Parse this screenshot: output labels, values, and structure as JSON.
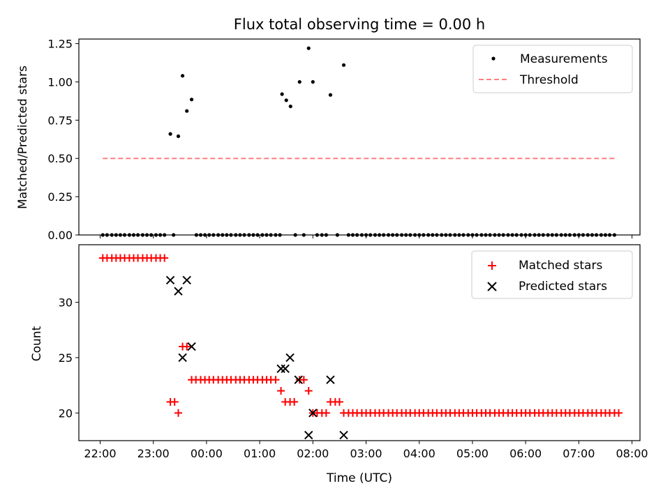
{
  "chart_data": [
    {
      "type": "scatter",
      "title": "Flux total observing time = 0.00 h",
      "xlabel": "",
      "ylabel": "Matched/Predicted stars",
      "xlim": [
        21.6,
        32.15
      ],
      "ylim": [
        0.0,
        1.28
      ],
      "yticks": [
        0.0,
        0.25,
        0.5,
        0.75,
        1.0,
        1.25
      ],
      "ytick_labels": [
        "0.00",
        "0.25",
        "0.50",
        "0.75",
        "1.00",
        "1.25"
      ],
      "legend": [
        "Measurements",
        "Threshold"
      ],
      "legend_position": "top-right",
      "series": [
        {
          "name": "Measurements",
          "marker": "dot",
          "color": "#000000",
          "points": [
            [
              22.05,
              0
            ],
            [
              22.13,
              0
            ],
            [
              22.22,
              0
            ],
            [
              22.3,
              0
            ],
            [
              22.38,
              0
            ],
            [
              22.46,
              0
            ],
            [
              22.55,
              0
            ],
            [
              22.63,
              0
            ],
            [
              22.71,
              0
            ],
            [
              22.8,
              0
            ],
            [
              22.88,
              0
            ],
            [
              22.96,
              0
            ],
            [
              23.05,
              0
            ],
            [
              23.13,
              0
            ],
            [
              23.21,
              0
            ],
            [
              23.32,
              0.66
            ],
            [
              23.38,
              0
            ],
            [
              23.47,
              0.645
            ],
            [
              23.55,
              1.04
            ],
            [
              23.63,
              0.81
            ],
            [
              23.72,
              0.885
            ],
            [
              23.81,
              0
            ],
            [
              23.89,
              0
            ],
            [
              23.97,
              0
            ],
            [
              24.05,
              0
            ],
            [
              24.13,
              0
            ],
            [
              24.22,
              0
            ],
            [
              24.3,
              0
            ],
            [
              24.38,
              0
            ],
            [
              24.46,
              0
            ],
            [
              24.55,
              0
            ],
            [
              24.63,
              0
            ],
            [
              24.71,
              0
            ],
            [
              24.8,
              0
            ],
            [
              24.88,
              0
            ],
            [
              24.96,
              0
            ],
            [
              25.05,
              0
            ],
            [
              25.13,
              0
            ],
            [
              25.21,
              0
            ],
            [
              25.3,
              0
            ],
            [
              25.38,
              0
            ],
            [
              25.42,
              0.92
            ],
            [
              25.5,
              0.88
            ],
            [
              25.58,
              0.84
            ],
            [
              25.67,
              0
            ],
            [
              25.75,
              1.0
            ],
            [
              25.83,
              0
            ],
            [
              25.92,
              1.22
            ],
            [
              26.0,
              1.0
            ],
            [
              26.08,
              0
            ],
            [
              26.17,
              0
            ],
            [
              26.25,
              0
            ],
            [
              26.33,
              0.915
            ],
            [
              26.46,
              0
            ],
            [
              26.58,
              1.11
            ],
            [
              26.67,
              0
            ],
            [
              26.75,
              0
            ],
            [
              26.83,
              0
            ],
            [
              26.92,
              0
            ],
            [
              27.0,
              0
            ],
            [
              27.08,
              0
            ],
            [
              27.17,
              0
            ],
            [
              27.25,
              0
            ],
            [
              27.33,
              0
            ],
            [
              27.42,
              0
            ],
            [
              27.5,
              0
            ],
            [
              27.58,
              0
            ],
            [
              27.67,
              0
            ],
            [
              27.75,
              0
            ],
            [
              27.83,
              0
            ],
            [
              27.92,
              0
            ],
            [
              28.0,
              0
            ],
            [
              28.08,
              0
            ],
            [
              28.17,
              0
            ],
            [
              28.25,
              0
            ],
            [
              28.33,
              0
            ],
            [
              28.42,
              0
            ],
            [
              28.5,
              0
            ],
            [
              28.58,
              0
            ],
            [
              28.67,
              0
            ],
            [
              28.75,
              0
            ],
            [
              28.83,
              0
            ],
            [
              28.92,
              0
            ],
            [
              29.0,
              0
            ],
            [
              29.08,
              0
            ],
            [
              29.17,
              0
            ],
            [
              29.25,
              0
            ],
            [
              29.33,
              0
            ],
            [
              29.42,
              0
            ],
            [
              29.5,
              0
            ],
            [
              29.58,
              0
            ],
            [
              29.67,
              0
            ],
            [
              29.75,
              0
            ],
            [
              29.83,
              0
            ],
            [
              29.92,
              0
            ],
            [
              30.0,
              0
            ],
            [
              30.08,
              0
            ],
            [
              30.17,
              0
            ],
            [
              30.25,
              0
            ],
            [
              30.33,
              0
            ],
            [
              30.42,
              0
            ],
            [
              30.5,
              0
            ],
            [
              30.58,
              0
            ],
            [
              30.67,
              0
            ],
            [
              30.75,
              0
            ],
            [
              30.83,
              0
            ],
            [
              30.92,
              0
            ],
            [
              31.0,
              0
            ],
            [
              31.08,
              0
            ],
            [
              31.17,
              0
            ],
            [
              31.25,
              0
            ],
            [
              31.33,
              0
            ],
            [
              31.42,
              0
            ],
            [
              31.5,
              0
            ],
            [
              31.58,
              0
            ],
            [
              31.67,
              0
            ]
          ]
        },
        {
          "name": "Threshold",
          "style": "dashed-line",
          "color": "#ff7f7f",
          "x": [
            22.05,
            31.67
          ],
          "y": [
            0.5,
            0.5
          ]
        }
      ]
    },
    {
      "type": "scatter",
      "title": "",
      "xlabel": "Time (UTC)",
      "ylabel": "Count",
      "xlim": [
        21.6,
        32.15
      ],
      "ylim": [
        17.5,
        35.2
      ],
      "xticks": [
        22,
        23,
        24,
        25,
        26,
        27,
        28,
        29,
        30,
        31,
        32
      ],
      "xtick_labels": [
        "22:00",
        "23:00",
        "00:00",
        "01:00",
        "02:00",
        "03:00",
        "04:00",
        "05:00",
        "06:00",
        "07:00",
        "08:00"
      ],
      "yticks": [
        20,
        25,
        30
      ],
      "ytick_labels": [
        "20",
        "25",
        "30"
      ],
      "legend": [
        "Matched stars",
        "Predicted stars"
      ],
      "legend_position": "top-right",
      "series": [
        {
          "name": "Matched stars",
          "marker": "plus",
          "color": "#ff0000",
          "points": [
            [
              22.05,
              34
            ],
            [
              22.13,
              34
            ],
            [
              22.22,
              34
            ],
            [
              22.3,
              34
            ],
            [
              22.38,
              34
            ],
            [
              22.46,
              34
            ],
            [
              22.55,
              34
            ],
            [
              22.63,
              34
            ],
            [
              22.71,
              34
            ],
            [
              22.8,
              34
            ],
            [
              22.88,
              34
            ],
            [
              22.96,
              34
            ],
            [
              23.05,
              34
            ],
            [
              23.13,
              34
            ],
            [
              23.21,
              34
            ],
            [
              23.32,
              21
            ],
            [
              23.4,
              21
            ],
            [
              23.47,
              20
            ],
            [
              23.55,
              26
            ],
            [
              23.63,
              26
            ],
            [
              23.72,
              23
            ],
            [
              23.8,
              23
            ],
            [
              23.89,
              23
            ],
            [
              23.97,
              23
            ],
            [
              24.05,
              23
            ],
            [
              24.13,
              23
            ],
            [
              24.22,
              23
            ],
            [
              24.3,
              23
            ],
            [
              24.38,
              23
            ],
            [
              24.46,
              23
            ],
            [
              24.55,
              23
            ],
            [
              24.63,
              23
            ],
            [
              24.71,
              23
            ],
            [
              24.8,
              23
            ],
            [
              24.88,
              23
            ],
            [
              24.96,
              23
            ],
            [
              25.05,
              23
            ],
            [
              25.13,
              23
            ],
            [
              25.21,
              23
            ],
            [
              25.3,
              23
            ],
            [
              25.4,
              22
            ],
            [
              25.48,
              21
            ],
            [
              25.57,
              21
            ],
            [
              25.65,
              21
            ],
            [
              25.75,
              23
            ],
            [
              25.83,
              23
            ],
            [
              25.92,
              22
            ],
            [
              26.0,
              20
            ],
            [
              26.08,
              20
            ],
            [
              26.17,
              20
            ],
            [
              26.25,
              20
            ],
            [
              26.33,
              21
            ],
            [
              26.42,
              21
            ],
            [
              26.5,
              21
            ],
            [
              26.58,
              20
            ],
            [
              26.67,
              20
            ],
            [
              26.75,
              20
            ],
            [
              26.83,
              20
            ],
            [
              26.92,
              20
            ],
            [
              27.0,
              20
            ],
            [
              27.08,
              20
            ],
            [
              27.17,
              20
            ],
            [
              27.25,
              20
            ],
            [
              27.33,
              20
            ],
            [
              27.42,
              20
            ],
            [
              27.5,
              20
            ],
            [
              27.58,
              20
            ],
            [
              27.67,
              20
            ],
            [
              27.75,
              20
            ],
            [
              27.83,
              20
            ],
            [
              27.92,
              20
            ],
            [
              28.0,
              20
            ],
            [
              28.08,
              20
            ],
            [
              28.17,
              20
            ],
            [
              28.25,
              20
            ],
            [
              28.33,
              20
            ],
            [
              28.42,
              20
            ],
            [
              28.5,
              20
            ],
            [
              28.58,
              20
            ],
            [
              28.67,
              20
            ],
            [
              28.75,
              20
            ],
            [
              28.83,
              20
            ],
            [
              28.92,
              20
            ],
            [
              29.0,
              20
            ],
            [
              29.08,
              20
            ],
            [
              29.17,
              20
            ],
            [
              29.25,
              20
            ],
            [
              29.33,
              20
            ],
            [
              29.42,
              20
            ],
            [
              29.5,
              20
            ],
            [
              29.58,
              20
            ],
            [
              29.67,
              20
            ],
            [
              29.75,
              20
            ],
            [
              29.83,
              20
            ],
            [
              29.92,
              20
            ],
            [
              30.0,
              20
            ],
            [
              30.08,
              20
            ],
            [
              30.17,
              20
            ],
            [
              30.25,
              20
            ],
            [
              30.33,
              20
            ],
            [
              30.42,
              20
            ],
            [
              30.5,
              20
            ],
            [
              30.58,
              20
            ],
            [
              30.67,
              20
            ],
            [
              30.75,
              20
            ],
            [
              30.83,
              20
            ],
            [
              30.92,
              20
            ],
            [
              31.0,
              20
            ],
            [
              31.08,
              20
            ],
            [
              31.17,
              20
            ],
            [
              31.25,
              20
            ],
            [
              31.33,
              20
            ],
            [
              31.42,
              20
            ],
            [
              31.5,
              20
            ],
            [
              31.58,
              20
            ],
            [
              31.67,
              20
            ],
            [
              31.75,
              20
            ]
          ]
        },
        {
          "name": "Predicted stars",
          "marker": "x",
          "color": "#000000",
          "points": [
            [
              23.32,
              32
            ],
            [
              23.47,
              31
            ],
            [
              23.55,
              25
            ],
            [
              23.63,
              32
            ],
            [
              23.72,
              26
            ],
            [
              25.4,
              24
            ],
            [
              25.48,
              24
            ],
            [
              25.57,
              25
            ],
            [
              25.73,
              23
            ],
            [
              25.92,
              18
            ],
            [
              26.0,
              20
            ],
            [
              26.33,
              23
            ],
            [
              26.58,
              18
            ]
          ]
        }
      ]
    }
  ]
}
